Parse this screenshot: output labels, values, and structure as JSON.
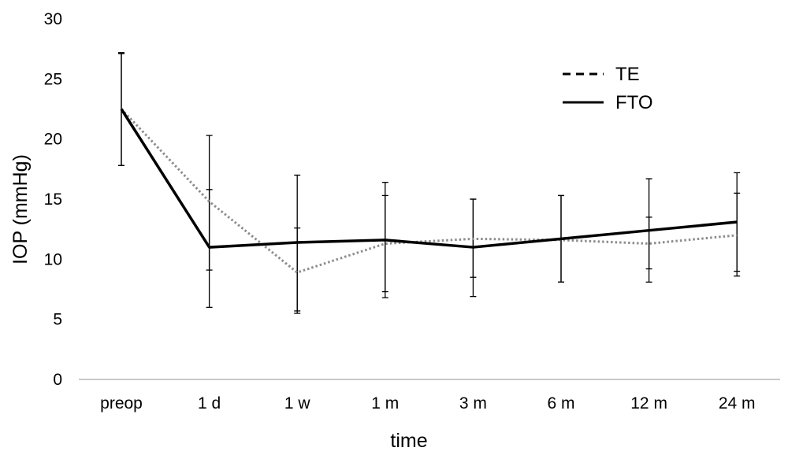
{
  "chart_data": {
    "type": "line",
    "xlabel": "time",
    "ylabel": "IOP (mmHg)",
    "categories": [
      "preop",
      "1 d",
      "1 w",
      "1 m",
      "3 m",
      "6 m",
      "12 m",
      "24 m"
    ],
    "ylim": [
      0,
      30
    ],
    "yticks": [
      0,
      5,
      10,
      15,
      20,
      25,
      30
    ],
    "grid": false,
    "legend": "top-right",
    "series": [
      {
        "name": "TE",
        "style": "dotted",
        "color": "#8c8c8c",
        "values": [
          22.5,
          14.8,
          8.9,
          11.3,
          11.7,
          11.6,
          11.3,
          12.0
        ],
        "error_low": [
          17.8,
          9.1,
          5.7,
          7.3,
          8.5,
          8.1,
          9.2,
          9.0
        ],
        "error_high": [
          27.1,
          20.3,
          12.6,
          15.3,
          15.0,
          15.3,
          13.5,
          15.5
        ]
      },
      {
        "name": "FTO",
        "style": "solid",
        "color": "#000000",
        "values": [
          22.5,
          11.0,
          11.4,
          11.6,
          11.0,
          11.7,
          12.4,
          13.1
        ],
        "error_low": [
          17.8,
          6.0,
          5.5,
          6.8,
          6.9,
          8.1,
          8.1,
          8.6
        ],
        "error_high": [
          27.2,
          15.8,
          17.0,
          16.4,
          15.0,
          15.3,
          16.7,
          17.2
        ]
      }
    ]
  }
}
